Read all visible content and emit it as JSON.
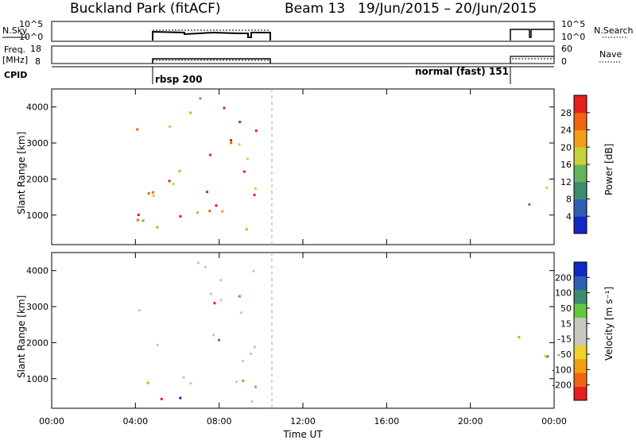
{
  "header": {
    "station": "Buckland Park (fitACF)",
    "beam": "Beam 13",
    "date_range": "19/Jun/2015 – 20/Jun/2015"
  },
  "params_panel": {
    "nsky_label": "N.Sky",
    "nsky_ticks": [
      "10^5",
      "10^0"
    ],
    "nsearch_label": "N.Search",
    "nsearch_ticks": [
      "10^5",
      "10^0"
    ],
    "freq_label": "Freq.",
    "freq_unit": "[MHz]",
    "freq_ticks": [
      "18",
      "8"
    ],
    "nave_label": "Nave",
    "nave_ticks": [
      "60",
      "0"
    ],
    "cpid_label": "CPID",
    "cpid_segments": [
      {
        "label": "rbsp 200",
        "start": 4.0,
        "end": 10.0
      },
      {
        "label": "normal (fast) 151",
        "start": 21.9,
        "end": 24.0
      }
    ]
  },
  "time_axis": {
    "label": "Time UT",
    "ticks": [
      "00:00",
      "04:00",
      "08:00",
      "12:00",
      "16:00",
      "20:00",
      "00:00"
    ],
    "range_hours": [
      0,
      24
    ]
  },
  "chart_data": [
    {
      "type": "heatmap",
      "name": "Power",
      "ylabel": "Slant Range [km]",
      "ylim": [
        180,
        4500
      ],
      "yticks": [
        1000,
        2000,
        3000,
        4000
      ],
      "xlim": [
        0,
        24
      ],
      "colorbar": {
        "label": "Power [dB]",
        "range": [
          0,
          32
        ],
        "ticks": [
          "28",
          "24",
          "20",
          "16",
          "12",
          "8",
          "4"
        ]
      },
      "palette": [
        "#1428c8",
        "#2f5fb4",
        "#3c8c6e",
        "#64b45a",
        "#c8d23c",
        "#f0a014",
        "#f06414",
        "#e61e1e"
      ],
      "regions": [
        {
          "t0": 4.0,
          "t1": 9.9,
          "r0": 200,
          "r1": 4300,
          "intensity": 0.75
        },
        {
          "t0": 4.0,
          "t1": 7.8,
          "r0": 880,
          "r1": 1020,
          "intensity": 0.95
        },
        {
          "t0": 9.6,
          "t1": 10.0,
          "r0": 1800,
          "r1": 3200,
          "intensity": 0.3
        },
        {
          "t0": 21.9,
          "t1": 24.0,
          "r0": 900,
          "r1": 2200,
          "intensity": 0.35
        },
        {
          "t0": 22.8,
          "t1": 24.0,
          "r0": 2800,
          "r1": 3200,
          "intensity": 0.25
        }
      ]
    },
    {
      "type": "heatmap",
      "name": "Velocity",
      "ylabel": "Slant Range [km]",
      "ylim": [
        180,
        4500
      ],
      "yticks": [
        1000,
        2000,
        3000,
        4000
      ],
      "xlim": [
        0,
        24
      ],
      "colorbar": {
        "label": "Velocity [m s⁻¹]",
        "range": [
          -250,
          250
        ],
        "ticks": [
          "200",
          "100",
          "50",
          "15",
          "-15",
          "-50",
          "-100",
          "-200"
        ]
      },
      "palette": [
        "#e61e1e",
        "#f06414",
        "#f0a014",
        "#f0d228",
        "#c8c8c0",
        "#c8c8c0",
        "#64c83c",
        "#3c8c6e",
        "#2f5fb4",
        "#1428c8"
      ],
      "regions": [
        {
          "t0": 4.0,
          "t1": 9.9,
          "r0": 200,
          "r1": 4300,
          "intensity": 0.5
        },
        {
          "t0": 4.0,
          "t1": 7.8,
          "r0": 880,
          "r1": 1020,
          "intensity": 0.5
        },
        {
          "t0": 21.9,
          "t1": 24.0,
          "r0": 900,
          "r1": 2200,
          "intensity": 0.5
        }
      ]
    }
  ]
}
